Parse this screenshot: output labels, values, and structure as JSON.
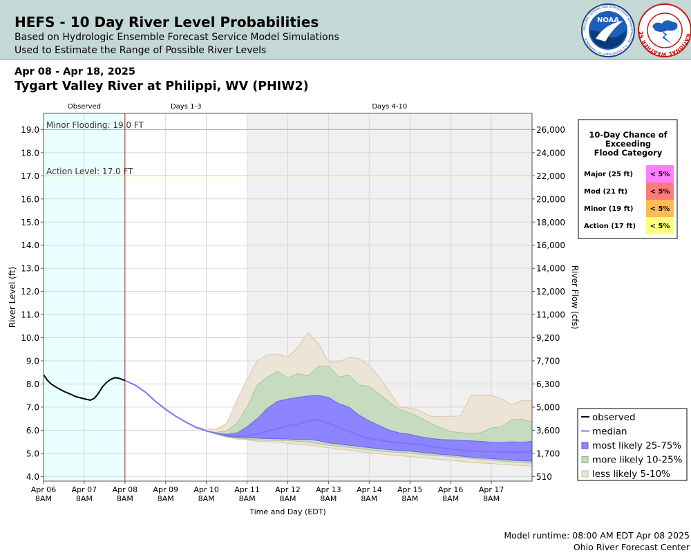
{
  "header": {
    "title": "HEFS - 10 Day River Level Probabilities",
    "subtitle_line1": "Based on Hydrologic Ensemble Forecast Service Model Simulations",
    "subtitle_line2": "Used to Estimate the Range of Possible River Levels",
    "noaa_logo_text": "NOAA",
    "noaa_ring_text": "NATIONAL OCEANIC AND ATMOSPHERIC ADMINISTRATION · U.S. DEPARTMENT OF COMMERCE",
    "nws_ring_text": "NATIONAL WEATHER SERVICE"
  },
  "date_range": "Apr 08 - Apr 18, 2025",
  "station": "Tygart Valley River at Philippi, WV (PHIW2)",
  "footer": {
    "runtime": "Model runtime: 08:00 AM EDT Apr 08 2025",
    "center": "Ohio River Forecast Center"
  },
  "colors": {
    "observed_bg": "#eaffff",
    "days410_bg": "#f0f0f0",
    "observed_line": "#000000",
    "median_line": "#7a74ff",
    "band_25_75": "#8c85ff",
    "band_10_25": "#c6dcbf",
    "band_5_10": "#ece4d6",
    "minor_line": "#f0b042",
    "action_line": "#f0e63a",
    "forecast_start_line": "#b02020"
  },
  "chart_data": {
    "type": "area",
    "periods": [
      "Observed",
      "Days 1-3",
      "Days 4-10"
    ],
    "period_bounds_day": [
      [
        0,
        2
      ],
      [
        2,
        5
      ],
      [
        5,
        12
      ]
    ],
    "x_ticks": [
      {
        "day": 0,
        "label": [
          "Apr 06",
          "8AM"
        ]
      },
      {
        "day": 1,
        "label": [
          "Apr 07",
          "8AM"
        ]
      },
      {
        "day": 2,
        "label": [
          "Apr 08",
          "8AM"
        ]
      },
      {
        "day": 3,
        "label": [
          "Apr 09",
          "8AM"
        ]
      },
      {
        "day": 4,
        "label": [
          "Apr 10",
          "8AM"
        ]
      },
      {
        "day": 5,
        "label": [
          "Apr 11",
          "8AM"
        ]
      },
      {
        "day": 6,
        "label": [
          "Apr 12",
          "8AM"
        ]
      },
      {
        "day": 7,
        "label": [
          "Apr 13",
          "8AM"
        ]
      },
      {
        "day": 8,
        "label": [
          "Apr 14",
          "8AM"
        ]
      },
      {
        "day": 9,
        "label": [
          "Apr 15",
          "8AM"
        ]
      },
      {
        "day": 10,
        "label": [
          "Apr 16",
          "8AM"
        ]
      },
      {
        "day": 11,
        "label": [
          "Apr 17",
          "8AM"
        ]
      }
    ],
    "x_range_day": [
      0,
      12
    ],
    "xlabel": "Time and Day (EDT)",
    "ylabel_left": "River Level (ft)",
    "ylabel_right": "River Flow (cfs)",
    "ylim": [
      3.8,
      19.7
    ],
    "y_ticks": [
      4.0,
      5.0,
      6.0,
      7.0,
      8.0,
      9.0,
      10.0,
      11.0,
      12.0,
      13.0,
      14.0,
      15.0,
      16.0,
      17.0,
      18.0,
      19.0
    ],
    "right_ticks": [
      {
        "stage": 4.0,
        "label": "510"
      },
      {
        "stage": 5.0,
        "label": "1,700"
      },
      {
        "stage": 6.0,
        "label": "3,600"
      },
      {
        "stage": 7.0,
        "label": "5,000"
      },
      {
        "stage": 8.0,
        "label": "6,300"
      },
      {
        "stage": 9.0,
        "label": "7,700"
      },
      {
        "stage": 10.0,
        "label": "9,200"
      },
      {
        "stage": 11.0,
        "label": "11,000"
      },
      {
        "stage": 12.0,
        "label": "12,000"
      },
      {
        "stage": 13.0,
        "label": "14,000"
      },
      {
        "stage": 14.0,
        "label": "16,000"
      },
      {
        "stage": 15.0,
        "label": "18,000"
      },
      {
        "stage": 16.0,
        "label": "20,000"
      },
      {
        "stage": 17.0,
        "label": "22,000"
      },
      {
        "stage": 18.0,
        "label": "24,000"
      },
      {
        "stage": 19.0,
        "label": "26,000"
      }
    ],
    "thresholds": [
      {
        "name": "Minor Flooding",
        "label": "Minor Flooding: 19.0 FT",
        "value": 19.0,
        "color": "#f0b042"
      },
      {
        "name": "Action Level",
        "label": "Action Level: 17.0 FT",
        "value": 17.0,
        "color": "#f0e63a"
      }
    ],
    "observed": {
      "x": [
        0,
        0.1,
        0.2,
        0.35,
        0.5,
        0.65,
        0.8,
        0.95,
        1.05,
        1.15,
        1.25,
        1.35,
        1.45,
        1.55,
        1.65,
        1.75,
        1.85,
        1.95,
        2.0
      ],
      "y": [
        8.4,
        8.15,
        7.98,
        7.82,
        7.68,
        7.57,
        7.45,
        7.38,
        7.34,
        7.3,
        7.38,
        7.6,
        7.88,
        8.07,
        8.2,
        8.27,
        8.25,
        8.18,
        8.15
      ]
    },
    "forecast": {
      "x": [
        2.0,
        2.25,
        2.5,
        2.75,
        3.0,
        3.25,
        3.5,
        3.75,
        4.0,
        4.25,
        4.5,
        4.75,
        5.0,
        5.25,
        5.5,
        5.75,
        6.0,
        6.25,
        6.5,
        6.75,
        7.0,
        7.25,
        7.5,
        7.75,
        8.0,
        8.25,
        8.5,
        8.75,
        9.0,
        9.25,
        9.5,
        9.75,
        10.0,
        10.25,
        10.5,
        10.75,
        11.0,
        11.25,
        11.5,
        11.75,
        12.0
      ],
      "median": [
        8.15,
        7.95,
        7.65,
        7.25,
        6.9,
        6.6,
        6.35,
        6.12,
        5.97,
        5.86,
        5.76,
        5.74,
        5.76,
        5.84,
        5.96,
        6.07,
        6.2,
        6.26,
        6.4,
        6.45,
        6.3,
        6.12,
        5.95,
        5.78,
        5.65,
        5.57,
        5.5,
        5.45,
        5.43,
        5.38,
        5.3,
        5.24,
        5.18,
        5.14,
        5.1,
        5.08,
        5.08,
        5.06,
        5.04,
        5.05,
        5.07
      ],
      "p25": [
        8.15,
        7.95,
        7.65,
        7.25,
        6.9,
        6.6,
        6.35,
        6.12,
        5.97,
        5.85,
        5.74,
        5.7,
        5.68,
        5.66,
        5.64,
        5.63,
        5.62,
        5.6,
        5.6,
        5.55,
        5.45,
        5.4,
        5.35,
        5.3,
        5.25,
        5.2,
        5.15,
        5.12,
        5.1,
        5.05,
        5.0,
        4.96,
        4.93,
        4.88,
        4.84,
        4.8,
        4.77,
        4.74,
        4.7,
        4.68,
        4.67
      ],
      "p75": [
        8.15,
        7.95,
        7.65,
        7.25,
        6.9,
        6.6,
        6.35,
        6.12,
        5.97,
        5.87,
        5.82,
        5.88,
        6.15,
        6.5,
        6.95,
        7.25,
        7.35,
        7.42,
        7.48,
        7.5,
        7.42,
        7.15,
        7.0,
        6.65,
        6.4,
        6.2,
        6.0,
        5.88,
        5.82,
        5.72,
        5.65,
        5.6,
        5.58,
        5.56,
        5.54,
        5.52,
        5.48,
        5.46,
        5.5,
        5.48,
        5.52
      ],
      "p10": [
        8.15,
        7.95,
        7.65,
        7.25,
        6.9,
        6.6,
        6.35,
        6.12,
        5.97,
        5.84,
        5.72,
        5.66,
        5.62,
        5.58,
        5.56,
        5.56,
        5.55,
        5.52,
        5.48,
        5.42,
        5.35,
        5.3,
        5.26,
        5.2,
        5.15,
        5.1,
        5.06,
        5.04,
        5.0,
        4.96,
        4.93,
        4.9,
        4.86,
        4.82,
        4.78,
        4.74,
        4.7,
        4.66,
        4.63,
        4.6,
        4.58
      ],
      "p90": [
        8.15,
        7.95,
        7.65,
        7.25,
        6.9,
        6.6,
        6.35,
        6.12,
        5.97,
        5.9,
        5.98,
        6.3,
        7.0,
        7.95,
        8.3,
        8.55,
        8.25,
        8.45,
        8.35,
        8.75,
        8.78,
        8.3,
        8.38,
        7.95,
        7.9,
        7.55,
        7.2,
        6.9,
        6.75,
        6.55,
        6.3,
        6.1,
        5.95,
        5.9,
        5.85,
        5.9,
        6.1,
        6.15,
        6.45,
        6.48,
        6.35
      ],
      "p05": [
        8.15,
        7.95,
        7.65,
        7.25,
        6.9,
        6.6,
        6.35,
        6.12,
        5.97,
        5.82,
        5.7,
        5.62,
        5.58,
        5.52,
        5.5,
        5.48,
        5.44,
        5.4,
        5.36,
        5.3,
        5.24,
        5.18,
        5.14,
        5.08,
        5.03,
        4.98,
        4.94,
        4.9,
        4.86,
        4.82,
        4.78,
        4.74,
        4.7,
        4.66,
        4.62,
        4.58,
        4.56,
        4.53,
        4.5,
        4.47,
        4.45
      ],
      "p95": [
        8.15,
        7.95,
        7.65,
        7.25,
        6.9,
        6.6,
        6.35,
        6.15,
        6.05,
        6.05,
        6.3,
        7.3,
        8.2,
        9.0,
        9.25,
        9.3,
        9.15,
        9.6,
        10.2,
        9.75,
        8.95,
        8.95,
        9.15,
        9.1,
        8.8,
        8.3,
        7.65,
        7.0,
        6.95,
        6.85,
        6.6,
        6.6,
        6.6,
        6.62,
        7.5,
        7.5,
        7.5,
        7.35,
        7.1,
        7.28,
        7.28
      ]
    },
    "legend": {
      "position": "bottom-right",
      "entries": [
        {
          "label": "observed",
          "kind": "line",
          "color": "#000000"
        },
        {
          "label": "median",
          "kind": "line",
          "color": "#7a74ff"
        },
        {
          "label": "most likely 25-75%",
          "kind": "box",
          "color": "#8c85ff",
          "edge": "#5a52e0"
        },
        {
          "label": "more likely 10-25%",
          "kind": "box",
          "color": "#c6dcbf",
          "edge": "#8fb287"
        },
        {
          "label": "less likely 5-10%",
          "kind": "box",
          "color": "#ece4d6",
          "edge": "#c8b99c"
        }
      ]
    },
    "exceedance_table": {
      "title": [
        "10-Day Chance of",
        "Exceeding",
        "Flood Category"
      ],
      "rows": [
        {
          "category": "Major (25 ft)",
          "chance": "< 5%",
          "color": "#ff80ff"
        },
        {
          "category": "Mod (21 ft)",
          "chance": "< 5%",
          "color": "#ff7a7a"
        },
        {
          "category": "Minor (19 ft)",
          "chance": "< 5%",
          "color": "#ffbb55"
        },
        {
          "category": "Action (17 ft)",
          "chance": "< 5%",
          "color": "#ffff80"
        }
      ]
    }
  }
}
